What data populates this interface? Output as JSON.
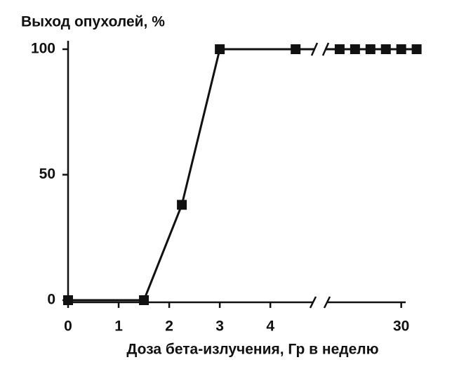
{
  "chart_data": {
    "type": "line",
    "title": "Выход опухолей, %",
    "x_label": "Доза бета-излучения, Гр в неделю",
    "x": [
      0,
      1.5,
      2.25,
      3,
      4.5,
      10,
      15,
      20,
      25,
      30,
      35
    ],
    "values": [
      0,
      0,
      38,
      100,
      100,
      100,
      100,
      100,
      100,
      100,
      100
    ],
    "color": "#111111",
    "xlim": [
      0,
      4.9
    ],
    "xticks": [
      0,
      1,
      2,
      3,
      4
    ],
    "x2lim": [
      5,
      36
    ],
    "x2ticks": [
      30
    ],
    "ylim": [
      0,
      100
    ],
    "yticks": [
      0,
      50,
      100
    ]
  }
}
